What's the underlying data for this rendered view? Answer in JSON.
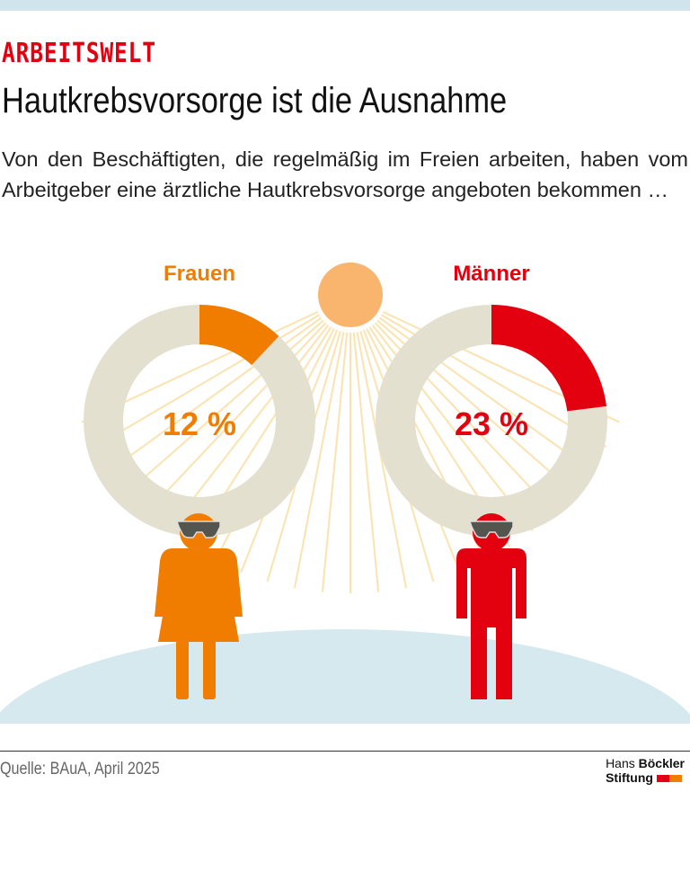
{
  "kicker": "ARBEITSWELT",
  "title": "Hautkrebsvorsorge ist die Ausnahme",
  "subtitle": "Von den Beschäftigten, die regelmäßig im Freien arbeiten, haben vom Arbeitgeber eine ärztliche Hautkrebsvorsorge angeboten bekommen …",
  "source": "Quelle: BAuA, April 2025",
  "logo": {
    "line1a": "Hans",
    "line1b": "Böckler",
    "line2": "Stiftung"
  },
  "colors": {
    "frauen": "#f07d00",
    "maenner": "#e3000f",
    "rest": "#e4e0cf",
    "sun": "#f9b46e",
    "ground": "#d6e9ef",
    "glasses": "#555550"
  },
  "chart_data": {
    "type": "pie",
    "variant": "donut",
    "series": [
      {
        "name": "Frauen",
        "value": 12,
        "label": "12 %"
      },
      {
        "name": "Männer",
        "value": 23,
        "label": "23 %"
      }
    ],
    "unit": "%"
  }
}
